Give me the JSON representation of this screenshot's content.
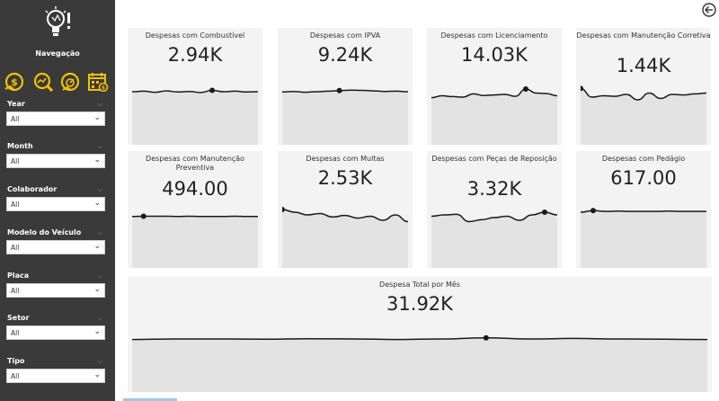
{
  "navigation": {
    "title": "Navegação",
    "icons": [
      "money-icon",
      "chart-search-icon",
      "speedometer-icon",
      "calendar-icon"
    ],
    "accent_color": "#f2c200"
  },
  "filters": [
    {
      "label": "Year",
      "value": "All"
    },
    {
      "label": "Month",
      "value": "All"
    },
    {
      "label": "Colaborador",
      "value": "All"
    },
    {
      "label": "Modelo do Veículo",
      "value": "All"
    },
    {
      "label": "Placa",
      "value": "All"
    },
    {
      "label": "Setor",
      "value": "All"
    },
    {
      "label": "Tipo",
      "value": "All"
    }
  ],
  "cards": [
    {
      "title": "Despesas com Combustível",
      "value": "2.94K",
      "chart_data": {
        "type": "area",
        "values": [
          50,
          52,
          48,
          53,
          49,
          51,
          47,
          55,
          50,
          52,
          49,
          50
        ],
        "marker_index": 7
      }
    },
    {
      "title": "Despesas com IPVA",
      "value": "9.24K",
      "chart_data": {
        "type": "area",
        "values": [
          49,
          51,
          48,
          50,
          52,
          54,
          56,
          55,
          53,
          51,
          52,
          50
        ],
        "marker_index": 5
      }
    },
    {
      "title": "Despesas com Licenciamento",
      "value": "14.03K",
      "chart_data": {
        "type": "area",
        "values": [
          28,
          35,
          32,
          30,
          42,
          36,
          38,
          40,
          33,
          60,
          45,
          43,
          35
        ],
        "marker_index": 9
      }
    },
    {
      "title": "Despesas com Manutenção Corretiva",
      "value": "1.44K",
      "chart_data": {
        "type": "area",
        "values": [
          62,
          30,
          35,
          33,
          40,
          20,
          45,
          25,
          40,
          38,
          42,
          45
        ],
        "marker_index": 0
      }
    },
    {
      "title": "Despesas com Manutenção Preventiva",
      "value": "494.00",
      "chart_data": {
        "type": "area",
        "values": [
          44,
          45,
          45,
          45,
          44,
          45,
          44,
          44,
          44,
          45,
          44,
          44
        ],
        "marker_index": 1
      }
    },
    {
      "title": "Despesas com Multas",
      "value": "2.53K",
      "chart_data": {
        "type": "area",
        "values": [
          70,
          60,
          50,
          55,
          42,
          48,
          38,
          45,
          30,
          50,
          25
        ],
        "marker_index": 0
      }
    },
    {
      "title": "Despesas com Peças de Reposição",
      "value": "3.32K",
      "chart_data": {
        "type": "area",
        "values": [
          45,
          50,
          52,
          25,
          32,
          40,
          45,
          30,
          50,
          60,
          50
        ],
        "marker_index": 9
      }
    },
    {
      "title": "Despesas com Pedágio",
      "value": "617.00",
      "chart_data": {
        "type": "area",
        "values": [
          60,
          66,
          63,
          64,
          63,
          63,
          63,
          64,
          63,
          63,
          63
        ],
        "marker_index": 1
      }
    }
  ],
  "total_card": {
    "title": "Despesa Total por Mês",
    "value": "31.92K",
    "chart_data": {
      "type": "area",
      "values": [
        48,
        50,
        50,
        49,
        51,
        50,
        48,
        50,
        54,
        50,
        52,
        50,
        49,
        48
      ],
      "marker_index": 8
    }
  }
}
